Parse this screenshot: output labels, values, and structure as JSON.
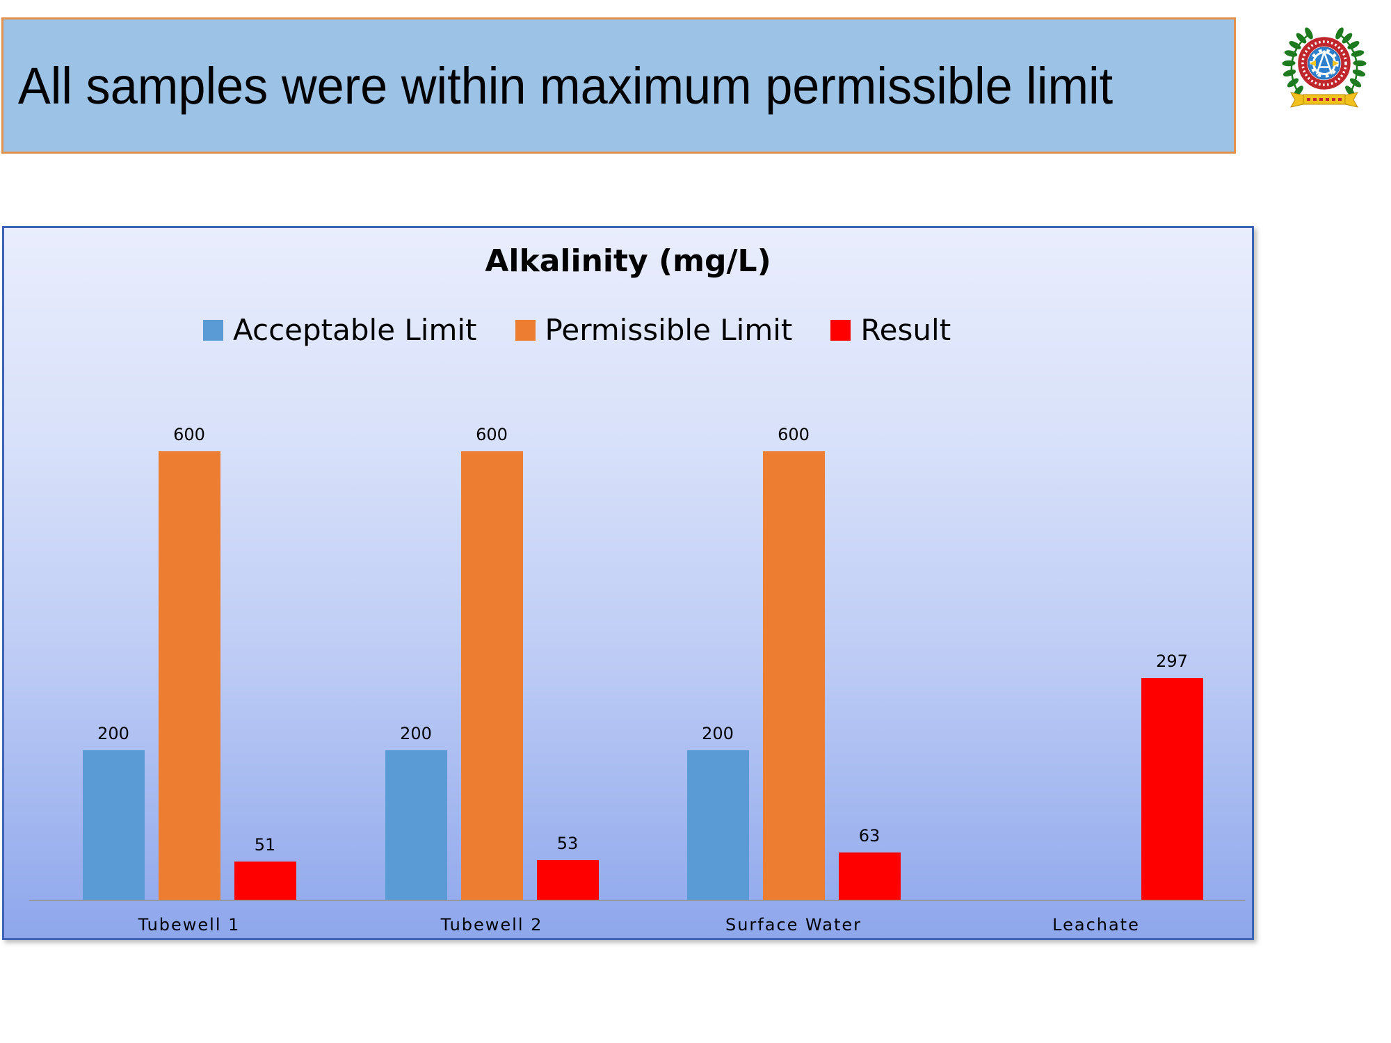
{
  "banner": {
    "title": "All samples were within maximum permissible limit",
    "fill_color": "#9CC3E6",
    "border_color": "#E2924D"
  },
  "logo": {
    "icon": "college-emblem-icon",
    "ring_text": "ASSAM ENGINEERING COLLEGE",
    "colors": {
      "wreath": "#1E7A1E",
      "ring": "#C0272D",
      "center": "#2F80CC",
      "ribbon": "#F2C11E"
    }
  },
  "chart_data": {
    "type": "bar",
    "title": "Alkalinity (mg/L)",
    "categories": [
      "Tubewell 1",
      "Tubewell 2",
      "Surface Water",
      "Leachate"
    ],
    "series": [
      {
        "name": "Acceptable Limit",
        "color": "#5B9BD5",
        "values": [
          200,
          200,
          200,
          null
        ]
      },
      {
        "name": "Permissible Limit",
        "color": "#ED7D31",
        "values": [
          600,
          600,
          600,
          null
        ]
      },
      {
        "name": "Result",
        "color": "#FF0000",
        "values": [
          51,
          53,
          63,
          297
        ]
      }
    ],
    "data_labels": true,
    "legend_position": "top",
    "xlabel": "",
    "ylabel": "",
    "y_axis_visible": false,
    "grid": false,
    "ylim": [
      0,
      600
    ],
    "background": "blue-gradient"
  }
}
